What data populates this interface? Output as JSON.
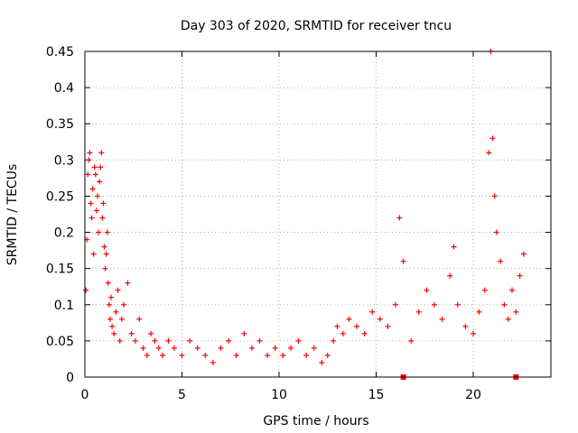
{
  "chart_data": {
    "type": "scatter",
    "title": "Day 303 of 2020, SRMTID for receiver tncu",
    "xlabel": "GPS time / hours",
    "ylabel": "SRMTID / TECUs",
    "xlim": [
      0,
      24
    ],
    "ylim": [
      0,
      0.45
    ],
    "xticks": [
      0,
      5,
      10,
      15,
      20
    ],
    "yticks": [
      0,
      0.05,
      0.1,
      0.15,
      0.2,
      0.25,
      0.3,
      0.35,
      0.4,
      0.45
    ],
    "xtick_labels": [
      "0",
      "5",
      "10",
      "15",
      "20"
    ],
    "ytick_labels": [
      "0",
      "0.05",
      "0.1",
      "0.15",
      "0.2",
      "0.25",
      "0.3",
      "0.35",
      "0.4",
      "0.45"
    ],
    "grid": true,
    "marker": "plus",
    "color": "#ff0000",
    "series": [
      {
        "x": [
          0.05,
          0.1,
          0.15,
          0.2,
          0.25,
          0.3,
          0.35,
          0.4,
          0.45,
          0.5,
          0.55,
          0.6,
          0.65,
          0.7,
          0.75,
          0.8,
          0.85,
          0.9,
          0.95,
          1.0,
          1.05,
          1.1,
          1.15,
          1.2,
          1.25,
          1.3,
          1.35,
          1.4,
          1.5,
          1.6,
          1.7,
          1.8,
          1.9,
          2.0,
          2.2,
          2.4,
          2.6,
          2.8,
          3.0,
          3.2,
          3.4,
          3.6,
          3.8,
          4.0,
          4.3,
          4.6,
          5.0,
          5.4,
          5.8,
          6.2,
          6.6,
          7.0,
          7.4,
          7.8,
          8.2,
          8.6,
          9.0,
          9.4,
          9.8,
          10.2,
          10.6,
          11.0,
          11.4,
          11.8,
          12.2,
          12.5,
          12.8,
          13.0,
          13.3,
          13.6,
          14.0,
          14.4,
          14.8,
          15.2,
          15.6,
          16.0,
          16.2,
          16.4,
          16.8,
          17.2,
          17.6,
          18.0,
          18.4,
          18.8,
          19.0,
          19.2,
          19.6,
          20.0,
          20.3,
          20.6,
          20.8,
          20.9,
          21.0,
          21.1,
          21.2,
          21.4,
          21.6,
          21.8,
          22.0,
          22.2,
          22.4,
          22.6
        ],
        "y": [
          0.12,
          0.19,
          0.28,
          0.3,
          0.31,
          0.24,
          0.22,
          0.26,
          0.17,
          0.29,
          0.28,
          0.23,
          0.25,
          0.2,
          0.27,
          0.29,
          0.31,
          0.22,
          0.24,
          0.18,
          0.15,
          0.17,
          0.2,
          0.13,
          0.1,
          0.08,
          0.11,
          0.07,
          0.06,
          0.09,
          0.12,
          0.05,
          0.08,
          0.1,
          0.13,
          0.06,
          0.05,
          0.08,
          0.04,
          0.03,
          0.06,
          0.05,
          0.04,
          0.03,
          0.05,
          0.04,
          0.03,
          0.05,
          0.04,
          0.03,
          0.02,
          0.04,
          0.05,
          0.03,
          0.06,
          0.04,
          0.05,
          0.03,
          0.04,
          0.03,
          0.04,
          0.05,
          0.03,
          0.04,
          0.02,
          0.03,
          0.05,
          0.07,
          0.06,
          0.08,
          0.07,
          0.06,
          0.09,
          0.08,
          0.07,
          0.1,
          0.22,
          0.16,
          0.05,
          0.09,
          0.12,
          0.1,
          0.08,
          0.14,
          0.18,
          0.1,
          0.07,
          0.06,
          0.09,
          0.12,
          0.31,
          0.45,
          0.33,
          0.25,
          0.2,
          0.16,
          0.1,
          0.08,
          0.12,
          0.09,
          0.14,
          0.17
        ]
      }
    ],
    "axis_markers": [
      16.4,
      22.2
    ]
  }
}
